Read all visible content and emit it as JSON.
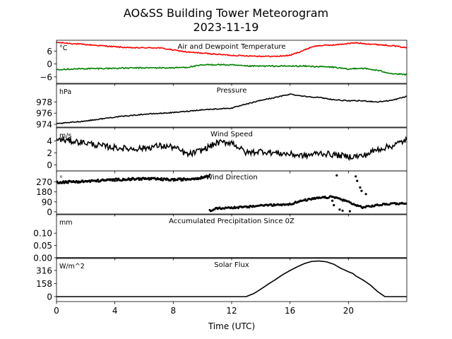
{
  "title_line1": "AO&SS Building Tower Meteorogram",
  "title_line2": "2023-11-19",
  "xlabel": "Time (UTC)",
  "chart_data": {
    "type": "line",
    "x_unit": "hours UTC",
    "xlim": [
      0,
      24
    ],
    "xticks": [
      0,
      4,
      8,
      12,
      16,
      20
    ],
    "panels": [
      {
        "id": "temp",
        "title": "Air and Dewpoint Temperature",
        "unit": "°C",
        "ylim": [
          -9,
          11
        ],
        "yticks": [
          6,
          0,
          -6
        ],
        "ytick_labels": [
          "6",
          "0",
          "−6"
        ],
        "series": [
          {
            "color": "#ff0000",
            "noise": 0.25,
            "x": [
              0,
              1,
              2,
              3,
              4,
              5,
              6,
              7,
              8,
              9,
              10,
              11,
              12,
              13,
              14,
              15,
              16,
              17,
              17.5,
              18,
              19,
              20,
              20.5,
              21,
              22,
              23,
              24
            ],
            "y": [
              10,
              9.5,
              9,
              8.5,
              8,
              7.5,
              7.5,
              7.5,
              6.5,
              5.5,
              5,
              4.5,
              4,
              3.8,
              3.6,
              3.5,
              4,
              6.5,
              8,
              8.5,
              8.8,
              9.5,
              9.8,
              9.5,
              9,
              8.5,
              7.5
            ]
          },
          {
            "color": "#008000",
            "noise": 0.3,
            "x": [
              0,
              2,
              4,
              6,
              8,
              9,
              10,
              11,
              12,
              13,
              15,
              17,
              19,
              20,
              20.5,
              21,
              22,
              23,
              24
            ],
            "y": [
              -2.5,
              -2.2,
              -2,
              -1.8,
              -1.8,
              -1.5,
              -0.5,
              -0.3,
              -0.5,
              -1,
              -1,
              -1,
              -1.5,
              -2.5,
              -2,
              -2,
              -3,
              -4.5,
              -5
            ]
          }
        ]
      },
      {
        "id": "pressure",
        "title": "Pressure",
        "unit": "hPa",
        "ylim": [
          973.5,
          981.2
        ],
        "yticks": [
          978,
          976,
          974
        ],
        "ytick_labels": [
          "978",
          "976",
          "974"
        ],
        "series": [
          {
            "color": "#000000",
            "noise": 0.08,
            "x": [
              0,
              2,
              4,
              6,
              8,
              10,
              12,
              14,
              15,
              16,
              17,
              18,
              19,
              20,
              21,
              22,
              23,
              24
            ],
            "y": [
              974.1,
              974.6,
              975.3,
              975.8,
              976.1,
              976.6,
              976.9,
              978.3,
              978.8,
              979.4,
              979.0,
              978.8,
              978.4,
              978.2,
              978.2,
              978.0,
              978.3,
              979.0
            ]
          }
        ]
      },
      {
        "id": "wind_speed",
        "title": "Wind Speed",
        "unit": "m/s",
        "ylim": [
          -1,
          6.2
        ],
        "yticks": [
          4,
          2,
          0
        ],
        "ytick_labels": [
          "4",
          "2",
          "0"
        ],
        "series": [
          {
            "color": "#000000",
            "noise": 0.5,
            "x": [
              0,
              1,
              2,
              3,
              4,
              5,
              6,
              7,
              8,
              9,
              10,
              11,
              12,
              13,
              14,
              15,
              16,
              17,
              18,
              19,
              20,
              21,
              22,
              23,
              24
            ],
            "y": [
              4.3,
              4.0,
              3.7,
              3.2,
              2.9,
              2.7,
              2.8,
              3.2,
              3.0,
              1.7,
              2.5,
              3.7,
              3.8,
              2.0,
              2.3,
              2.0,
              1.8,
              1.5,
              2.0,
              1.7,
              1.4,
              1.5,
              2.6,
              3.2,
              4.2
            ]
          }
        ]
      },
      {
        "id": "wind_direction",
        "title": "Wind Direction",
        "unit": "°",
        "ylim": [
          -20,
          370
        ],
        "yticks": [
          270,
          180,
          90,
          0
        ],
        "ytick_labels": [
          "270",
          "180",
          "90",
          "0"
        ],
        "series": [
          {
            "color": "#000000",
            "noise": 10,
            "markers": true,
            "x": [
              0,
              2,
              4,
              6,
              8,
              9,
              10,
              10.5
            ],
            "y": [
              268,
              275,
              290,
              300,
              290,
              295,
              310,
              330
            ]
          },
          {
            "color": "#000000",
            "noise": 8,
            "markers": true,
            "x": [
              10.5,
              11,
              12,
              13,
              14,
              15,
              16,
              17,
              18,
              19,
              20,
              20.5,
              21,
              22,
              23,
              24
            ],
            "y": [
              10,
              30,
              38,
              42,
              58,
              62,
              70,
              105,
              125,
              135,
              90,
              60,
              40,
              60,
              75,
              75
            ]
          }
        ],
        "scattered_points": [
          {
            "x": 19.2,
            "y": 330
          },
          {
            "x": 20.5,
            "y": 320
          },
          {
            "x": 20.6,
            "y": 280
          },
          {
            "x": 20.8,
            "y": 220
          },
          {
            "x": 20.9,
            "y": 190
          },
          {
            "x": 21.2,
            "y": 160
          },
          {
            "x": 19.0,
            "y": 60
          },
          {
            "x": 19.4,
            "y": 20
          },
          {
            "x": 19.6,
            "y": 10
          },
          {
            "x": 18.9,
            "y": 100
          },
          {
            "x": 20.1,
            "y": 5
          }
        ]
      },
      {
        "id": "precip",
        "title": "Accumulated Precipitation Since 0Z",
        "unit": "mm",
        "ylim": [
          0,
          0.175
        ],
        "yticks": [
          0.1,
          0.05,
          0.0
        ],
        "ytick_labels": [
          "0.10",
          "0.05",
          "0.00"
        ],
        "series": [
          {
            "color": "#000000",
            "noise": 0,
            "x": [
              0,
              24
            ],
            "y": [
              0,
              0
            ]
          }
        ]
      },
      {
        "id": "solar",
        "title": "Solar Flux",
        "unit": "W/m^2",
        "ylim": [
          -60,
          460
        ],
        "yticks": [
          316,
          158,
          0
        ],
        "ytick_labels": [
          "316",
          "158",
          "0"
        ],
        "series": [
          {
            "color": "#000000",
            "noise": 0,
            "x": [
              0,
              13,
              13.5,
              14,
              14.5,
              15,
              15.5,
              16,
              16.5,
              17,
              17.5,
              18,
              18.5,
              19,
              19.5,
              20,
              20.3,
              20.5,
              21,
              21.5,
              22,
              22.5,
              23,
              24
            ],
            "y": [
              0,
              0,
              35,
              90,
              150,
              205,
              265,
              315,
              360,
              400,
              425,
              430,
              420,
              390,
              340,
              300,
              280,
              250,
              200,
              140,
              60,
              0,
              0,
              0
            ]
          }
        ]
      }
    ]
  }
}
